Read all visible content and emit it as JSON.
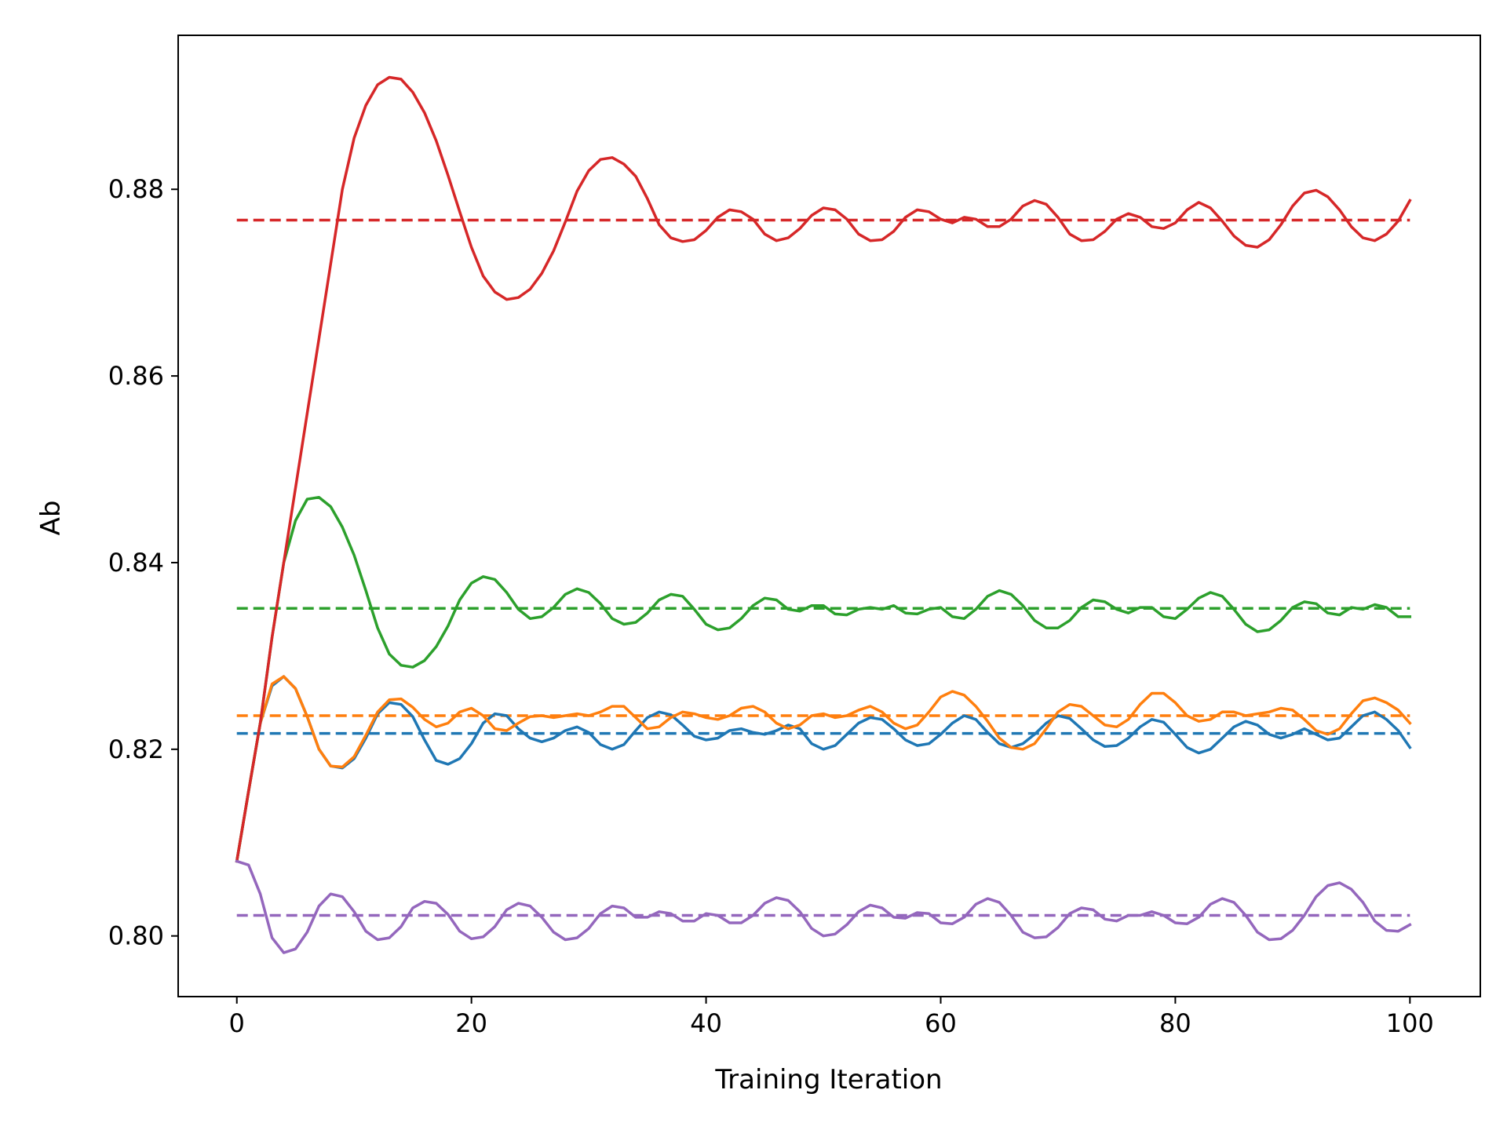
{
  "chart_data": {
    "type": "line",
    "title": "",
    "xlabel": "Training Iteration",
    "ylabel": "Ab",
    "xlim": [
      -5,
      106
    ],
    "ylim": [
      0.7935,
      0.8965
    ],
    "xticks": [
      0,
      20,
      40,
      60,
      80,
      100
    ],
    "xtick_labels": [
      "0",
      "20",
      "40",
      "60",
      "80",
      "100"
    ],
    "yticks": [
      0.8,
      0.82,
      0.84,
      0.86,
      0.88
    ],
    "ytick_labels": [
      "0.80",
      "0.82",
      "0.84",
      "0.86",
      "0.88"
    ],
    "grid": false,
    "legend": "none",
    "x_range": [
      0,
      100
    ],
    "series": [
      {
        "color": "#1f77b4",
        "mean": 0.8217,
        "values": [
          0.808,
          0.8155,
          0.8228,
          0.8268,
          0.8278,
          0.8265,
          0.8235,
          0.82,
          0.8182,
          0.818,
          0.819,
          0.8212,
          0.8238,
          0.825,
          0.8248,
          0.8235,
          0.821,
          0.8188,
          0.8184,
          0.819,
          0.8206,
          0.8228,
          0.8238,
          0.8236,
          0.8222,
          0.8212,
          0.8208,
          0.8212,
          0.822,
          0.8224,
          0.8218,
          0.8205,
          0.82,
          0.8205,
          0.822,
          0.8234,
          0.824,
          0.8237,
          0.8226,
          0.8214,
          0.821,
          0.8212,
          0.822,
          0.8222,
          0.8218,
          0.8216,
          0.822,
          0.8226,
          0.8222,
          0.8206,
          0.82,
          0.8204,
          0.8216,
          0.8228,
          0.8234,
          0.8232,
          0.8222,
          0.821,
          0.8204,
          0.8206,
          0.8216,
          0.8228,
          0.8236,
          0.8232,
          0.8218,
          0.8206,
          0.8202,
          0.8206,
          0.8216,
          0.8228,
          0.8236,
          0.8233,
          0.8222,
          0.821,
          0.8203,
          0.8204,
          0.8212,
          0.8224,
          0.8232,
          0.8229,
          0.8216,
          0.8202,
          0.8196,
          0.82,
          0.8212,
          0.8224,
          0.823,
          0.8226,
          0.8216,
          0.8212,
          0.8216,
          0.8222,
          0.8216,
          0.821,
          0.8212,
          0.8224,
          0.8236,
          0.824,
          0.8232,
          0.822,
          0.8202
        ]
      },
      {
        "color": "#ff7f0e",
        "mean": 0.8236,
        "values": [
          0.808,
          0.8155,
          0.8228,
          0.827,
          0.8278,
          0.8265,
          0.8235,
          0.82,
          0.8182,
          0.8181,
          0.8192,
          0.8215,
          0.824,
          0.8253,
          0.8254,
          0.8245,
          0.8232,
          0.8224,
          0.8228,
          0.824,
          0.8244,
          0.8236,
          0.8222,
          0.822,
          0.8228,
          0.8235,
          0.8236,
          0.8234,
          0.8236,
          0.8238,
          0.8236,
          0.824,
          0.8246,
          0.8246,
          0.8234,
          0.8222,
          0.8224,
          0.8234,
          0.824,
          0.8238,
          0.8234,
          0.8232,
          0.8236,
          0.8244,
          0.8246,
          0.824,
          0.8228,
          0.8222,
          0.8226,
          0.8236,
          0.8238,
          0.8234,
          0.8236,
          0.8242,
          0.8246,
          0.824,
          0.8228,
          0.8222,
          0.8226,
          0.824,
          0.8256,
          0.8262,
          0.8258,
          0.8246,
          0.823,
          0.8212,
          0.8202,
          0.82,
          0.8206,
          0.8222,
          0.824,
          0.8248,
          0.8246,
          0.8236,
          0.8226,
          0.8224,
          0.8232,
          0.8248,
          0.826,
          0.826,
          0.825,
          0.8236,
          0.823,
          0.8232,
          0.824,
          0.824,
          0.8236,
          0.8238,
          0.824,
          0.8244,
          0.8242,
          0.8232,
          0.822,
          0.8216,
          0.8222,
          0.8238,
          0.8252,
          0.8255,
          0.825,
          0.8242,
          0.8228
        ]
      },
      {
        "color": "#2ca02c",
        "mean": 0.8351,
        "values": [
          0.808,
          0.8155,
          0.8228,
          0.832,
          0.84,
          0.8445,
          0.8468,
          0.847,
          0.846,
          0.8438,
          0.8408,
          0.837,
          0.833,
          0.8302,
          0.829,
          0.8288,
          0.8295,
          0.831,
          0.8332,
          0.836,
          0.8378,
          0.8385,
          0.8382,
          0.8368,
          0.835,
          0.834,
          0.8342,
          0.8352,
          0.8366,
          0.8372,
          0.8368,
          0.8356,
          0.834,
          0.8334,
          0.8336,
          0.8346,
          0.836,
          0.8366,
          0.8364,
          0.835,
          0.8334,
          0.8328,
          0.833,
          0.834,
          0.8354,
          0.8362,
          0.836,
          0.835,
          0.8348,
          0.8354,
          0.8354,
          0.8345,
          0.8344,
          0.835,
          0.8352,
          0.835,
          0.8354,
          0.8346,
          0.8345,
          0.835,
          0.8352,
          0.8342,
          0.834,
          0.835,
          0.8364,
          0.837,
          0.8366,
          0.8354,
          0.8338,
          0.833,
          0.833,
          0.8338,
          0.8352,
          0.836,
          0.8358,
          0.835,
          0.8346,
          0.8352,
          0.8352,
          0.8342,
          0.834,
          0.835,
          0.8362,
          0.8368,
          0.8364,
          0.835,
          0.8334,
          0.8326,
          0.8328,
          0.8338,
          0.8352,
          0.8358,
          0.8356,
          0.8346,
          0.8344,
          0.8352,
          0.835,
          0.8355,
          0.8352,
          0.8342,
          0.8342
        ]
      },
      {
        "color": "#d62728",
        "mean": 0.8767,
        "values": [
          0.808,
          0.8155,
          0.8228,
          0.832,
          0.84,
          0.848,
          0.856,
          0.864,
          0.872,
          0.88,
          0.8855,
          0.889,
          0.8912,
          0.892,
          0.8918,
          0.8904,
          0.8882,
          0.8852,
          0.8815,
          0.8776,
          0.8738,
          0.8707,
          0.869,
          0.8682,
          0.8684,
          0.8693,
          0.871,
          0.8734,
          0.8765,
          0.8798,
          0.882,
          0.8832,
          0.8834,
          0.8827,
          0.8814,
          0.879,
          0.8762,
          0.8748,
          0.8744,
          0.8746,
          0.8756,
          0.877,
          0.8778,
          0.8776,
          0.8768,
          0.8752,
          0.8745,
          0.8748,
          0.8758,
          0.8772,
          0.878,
          0.8778,
          0.8768,
          0.8752,
          0.8745,
          0.8746,
          0.8755,
          0.877,
          0.8778,
          0.8776,
          0.8768,
          0.8764,
          0.877,
          0.8768,
          0.876,
          0.876,
          0.8768,
          0.8782,
          0.8788,
          0.8784,
          0.877,
          0.8752,
          0.8745,
          0.8746,
          0.8755,
          0.8768,
          0.8774,
          0.877,
          0.876,
          0.8758,
          0.8764,
          0.8778,
          0.8786,
          0.878,
          0.8766,
          0.875,
          0.874,
          0.8738,
          0.8746,
          0.8762,
          0.8782,
          0.8796,
          0.8799,
          0.8792,
          0.8778,
          0.876,
          0.8748,
          0.8745,
          0.8752,
          0.8766,
          0.8788
        ]
      },
      {
        "color": "#9467bd",
        "mean": 0.8022,
        "values": [
          0.808,
          0.8076,
          0.8045,
          0.7998,
          0.7982,
          0.7986,
          0.8004,
          0.8032,
          0.8045,
          0.8042,
          0.8026,
          0.8005,
          0.7996,
          0.7998,
          0.801,
          0.803,
          0.8037,
          0.8035,
          0.8023,
          0.8005,
          0.7997,
          0.7999,
          0.801,
          0.8028,
          0.8035,
          0.8032,
          0.802,
          0.8004,
          0.7996,
          0.7998,
          0.8008,
          0.8024,
          0.8032,
          0.803,
          0.802,
          0.802,
          0.8026,
          0.8024,
          0.8016,
          0.8016,
          0.8024,
          0.8022,
          0.8014,
          0.8014,
          0.8022,
          0.8035,
          0.8041,
          0.8038,
          0.8026,
          0.8008,
          0.8,
          0.8002,
          0.8012,
          0.8026,
          0.8033,
          0.803,
          0.802,
          0.8019,
          0.8025,
          0.8024,
          0.8014,
          0.8013,
          0.802,
          0.8034,
          0.804,
          0.8036,
          0.8022,
          0.8004,
          0.7998,
          0.7999,
          0.8009,
          0.8024,
          0.803,
          0.8028,
          0.8018,
          0.8016,
          0.8022,
          0.8022,
          0.8026,
          0.8022,
          0.8014,
          0.8013,
          0.802,
          0.8034,
          0.804,
          0.8036,
          0.8022,
          0.8004,
          0.7996,
          0.7997,
          0.8006,
          0.8022,
          0.8042,
          0.8054,
          0.8057,
          0.805,
          0.8036,
          0.8016,
          0.8006,
          0.8005,
          0.8012
        ]
      }
    ]
  }
}
